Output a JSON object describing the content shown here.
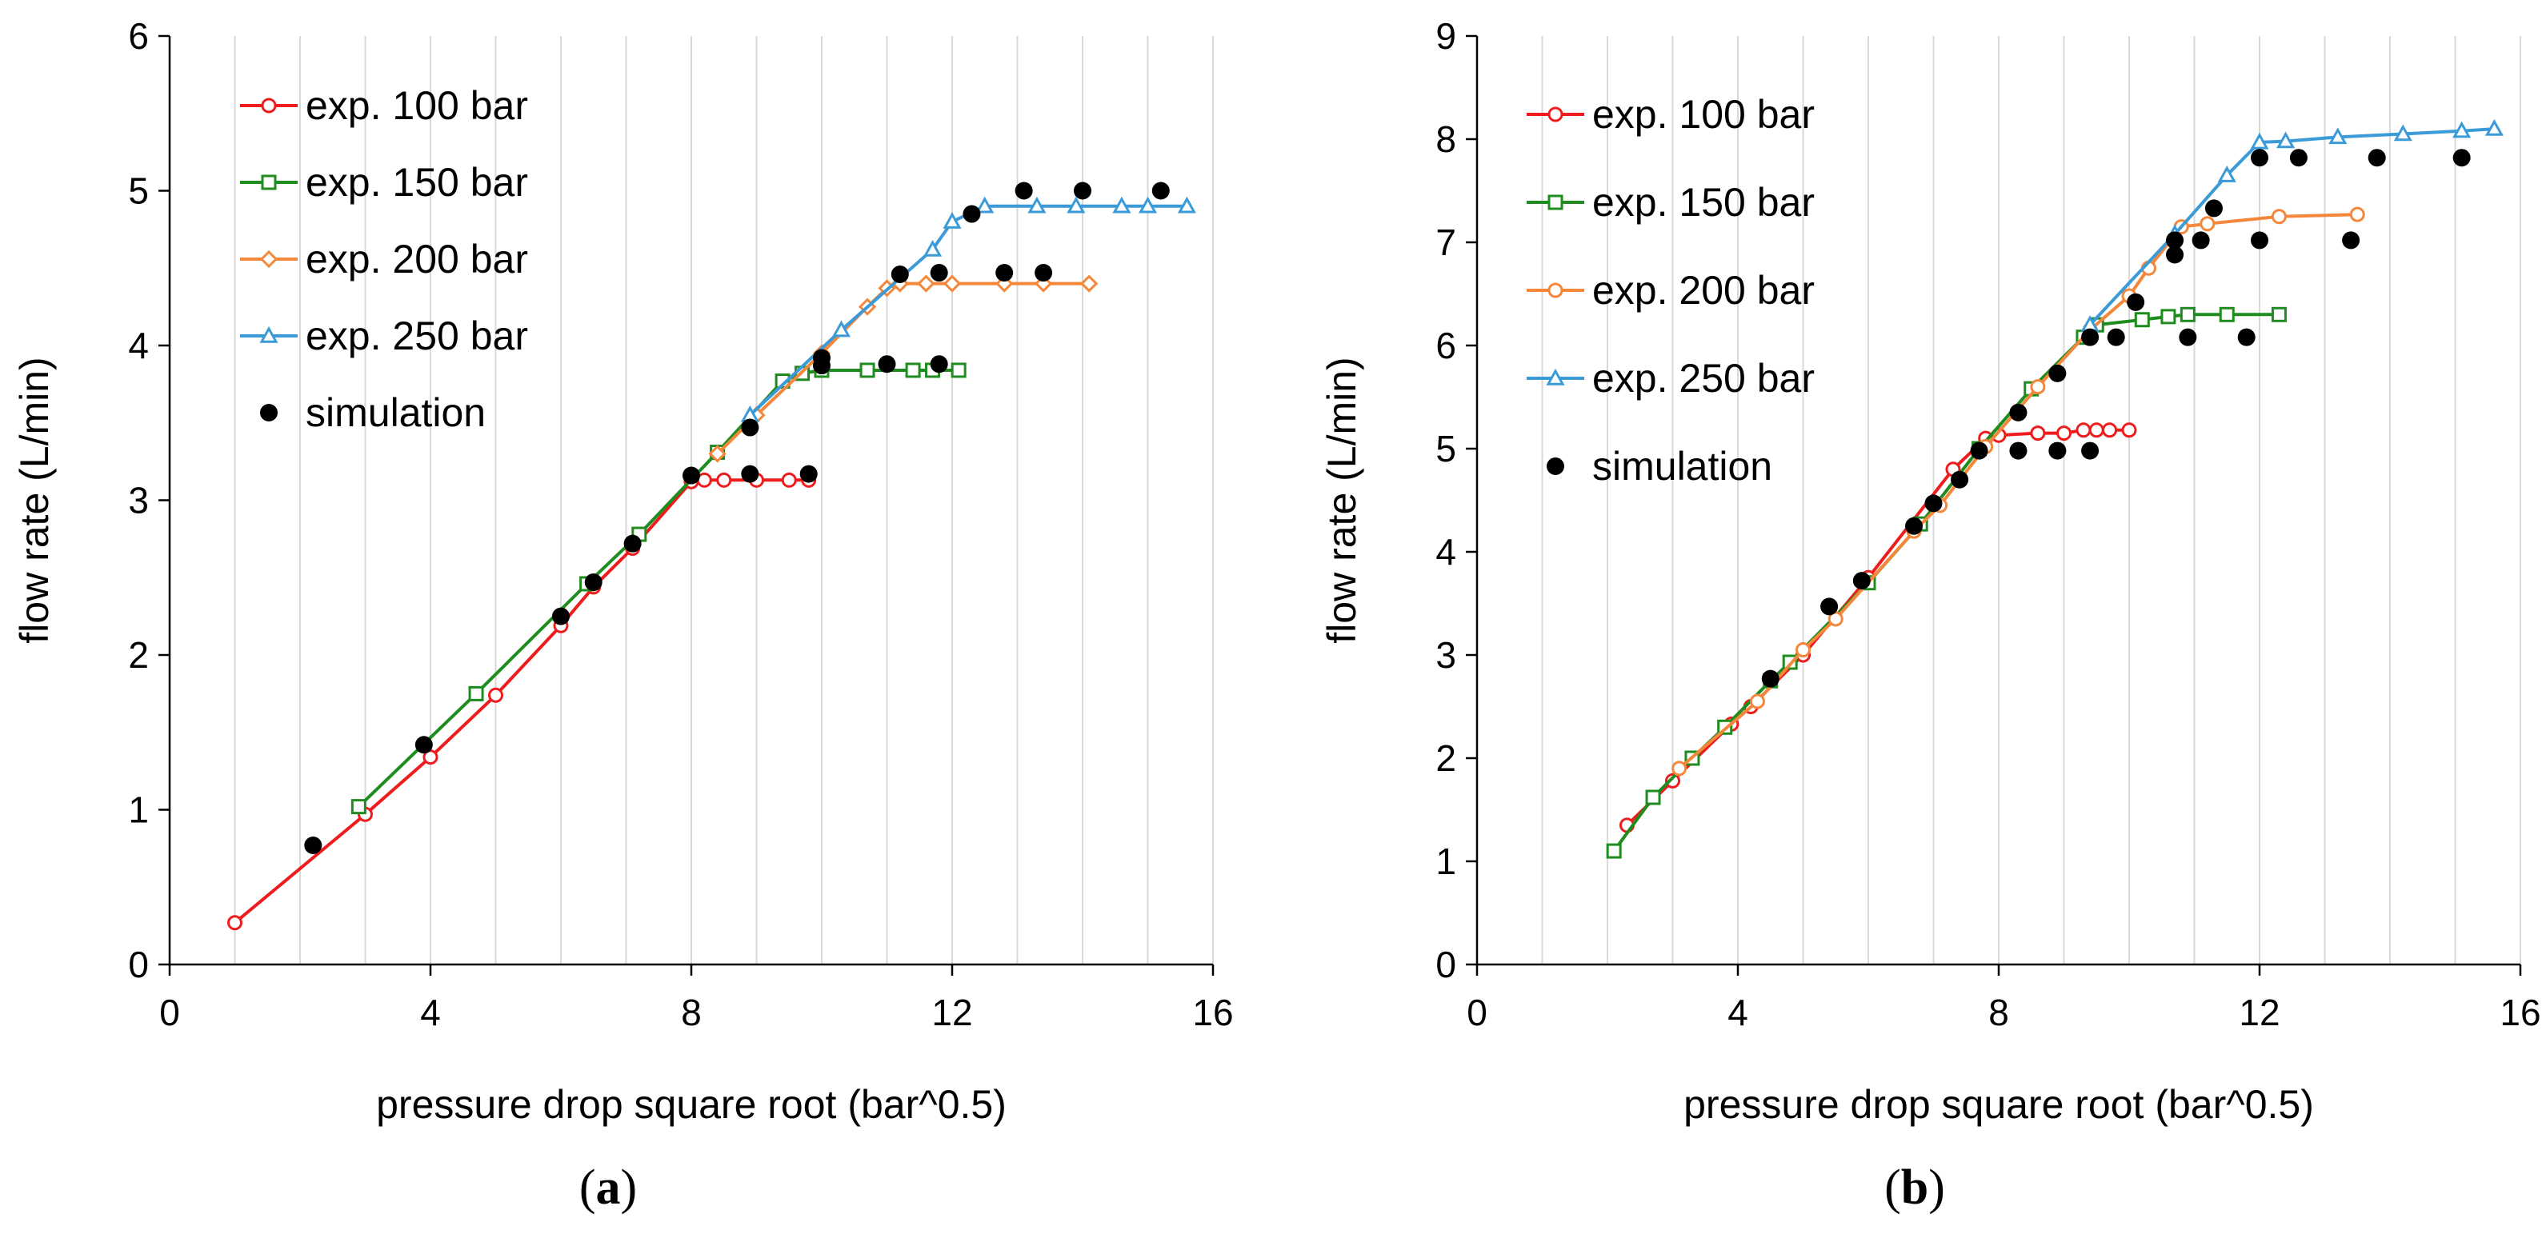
{
  "colors": {
    "exp100": "#ee1c1c",
    "exp150": "#1e8c1e",
    "exp200": "#f4873a",
    "exp250": "#3a9bd8",
    "simulation": "#000000",
    "grid": "#d9d9d9"
  },
  "chart_data": [
    {
      "type": "line",
      "panel_label": "(a)",
      "title": "",
      "xlabel": "pressure drop square root (bar^0.5)",
      "ylabel": "flow rate (L/min)",
      "xlim": [
        0,
        16
      ],
      "ylim": [
        0,
        6
      ],
      "xticks": [
        0,
        4,
        8,
        12,
        16
      ],
      "xtick_labels": [
        "0",
        "4",
        "8",
        "12",
        "16"
      ],
      "yticks": [
        0,
        1,
        2,
        3,
        4,
        5,
        6
      ],
      "ytick_labels": [
        "0",
        "1",
        "2",
        "3",
        "4",
        "5",
        "6"
      ],
      "grid": "vertical",
      "legend_position": "top-left",
      "series": [
        {
          "name": "exp. 100 bar",
          "color_key": "exp100",
          "marker": "circle-open",
          "x": [
            1.0,
            3.0,
            4.0,
            5.0,
            6.0,
            6.5,
            7.1,
            8.0,
            8.2,
            8.5,
            9.0,
            9.5,
            9.8
          ],
          "y": [
            0.27,
            0.97,
            1.34,
            1.74,
            2.19,
            2.44,
            2.69,
            3.12,
            3.13,
            3.13,
            3.13,
            3.13,
            3.13
          ]
        },
        {
          "name": "exp. 150 bar",
          "color_key": "exp150",
          "marker": "square-open",
          "x": [
            2.9,
            4.7,
            6.4,
            7.2,
            8.4,
            9.4,
            9.7,
            10.0,
            10.7,
            11.4,
            11.7,
            12.1
          ],
          "y": [
            1.02,
            1.75,
            2.46,
            2.78,
            3.31,
            3.77,
            3.82,
            3.84,
            3.84,
            3.84,
            3.84,
            3.84
          ]
        },
        {
          "name": "exp. 200 bar",
          "color_key": "exp200",
          "marker": "diamond-open",
          "x": [
            8.4,
            9.0,
            10.0,
            10.7,
            11.0,
            11.2,
            11.6,
            12.0,
            12.8,
            13.4,
            14.1
          ],
          "y": [
            3.3,
            3.55,
            3.95,
            4.25,
            4.37,
            4.4,
            4.4,
            4.4,
            4.4,
            4.4,
            4.4
          ]
        },
        {
          "name": "exp. 250 bar",
          "color_key": "exp250",
          "marker": "triangle-open",
          "x": [
            8.9,
            10.3,
            11.7,
            12.0,
            12.5,
            13.3,
            13.9,
            14.6,
            15.0,
            15.6
          ],
          "y": [
            3.55,
            4.1,
            4.62,
            4.8,
            4.9,
            4.9,
            4.9,
            4.9,
            4.9,
            4.9
          ]
        },
        {
          "name": "simulation",
          "color_key": "simulation",
          "marker": "dot",
          "line": false,
          "x": [
            2.2,
            3.9,
            6.0,
            6.5,
            7.1,
            8.0,
            8.9,
            8.9,
            9.8,
            10.0,
            10.0,
            11.0,
            11.2,
            11.8,
            11.8,
            12.3,
            12.8,
            13.1,
            13.4,
            14.0,
            15.2
          ],
          "y": [
            0.77,
            1.42,
            2.25,
            2.47,
            2.72,
            3.16,
            3.17,
            3.47,
            3.17,
            3.87,
            3.92,
            3.88,
            4.46,
            4.47,
            3.88,
            4.85,
            4.47,
            5.0,
            4.47,
            5.0,
            5.0
          ]
        }
      ]
    },
    {
      "type": "line",
      "panel_label": "(b)",
      "title": "",
      "xlabel": "pressure drop square root (bar^0.5)",
      "ylabel": "flow rate (L/min)",
      "xlim": [
        0,
        16
      ],
      "ylim": [
        0,
        9
      ],
      "xticks": [
        0,
        4,
        8,
        12,
        16
      ],
      "xtick_labels": [
        "0",
        "4",
        "8",
        "12",
        "16"
      ],
      "yticks": [
        0,
        1,
        2,
        3,
        4,
        5,
        6,
        7,
        8,
        9
      ],
      "ytick_labels": [
        "0",
        "1",
        "2",
        "3",
        "4",
        "5",
        "6",
        "7",
        "8",
        "9"
      ],
      "grid": "vertical",
      "legend_position": "top-left",
      "series": [
        {
          "name": "exp. 100 bar",
          "color_key": "exp100",
          "marker": "circle-open",
          "x": [
            2.3,
            3.0,
            3.9,
            4.2,
            5.0,
            6.0,
            7.3,
            7.8,
            8.0,
            8.6,
            9.0,
            9.3,
            9.5,
            9.7,
            10.0
          ],
          "y": [
            1.35,
            1.78,
            2.33,
            2.5,
            3.0,
            3.75,
            4.8,
            5.1,
            5.13,
            5.15,
            5.15,
            5.18,
            5.18,
            5.18,
            5.18
          ]
        },
        {
          "name": "exp. 150 bar",
          "color_key": "exp150",
          "marker": "square-open",
          "x": [
            2.1,
            2.7,
            3.3,
            3.8,
            4.5,
            4.8,
            6.0,
            6.8,
            7.7,
            8.5,
            9.3,
            9.5,
            10.2,
            10.6,
            10.9,
            11.5,
            12.3
          ],
          "y": [
            1.1,
            1.62,
            2.0,
            2.3,
            2.75,
            2.93,
            3.7,
            4.27,
            5.0,
            5.58,
            6.08,
            6.2,
            6.25,
            6.28,
            6.3,
            6.3,
            6.3
          ]
        },
        {
          "name": "exp. 200 bar",
          "color_key": "exp200",
          "marker": "circle-open",
          "x": [
            3.1,
            4.3,
            5.0,
            5.5,
            6.7,
            7.1,
            7.8,
            8.6,
            9.4,
            10.0,
            10.3,
            10.8,
            11.2,
            12.3,
            13.5
          ],
          "y": [
            1.9,
            2.55,
            3.05,
            3.35,
            4.2,
            4.45,
            5.02,
            5.6,
            6.15,
            6.48,
            6.75,
            7.15,
            7.18,
            7.25,
            7.27
          ]
        },
        {
          "name": "exp. 250 bar",
          "color_key": "exp250",
          "marker": "triangle-open",
          "x": [
            9.4,
            10.7,
            11.5,
            12.0,
            12.4,
            13.2,
            14.2,
            15.1,
            15.6
          ],
          "y": [
            6.2,
            7.08,
            7.65,
            7.97,
            7.98,
            8.02,
            8.05,
            8.08,
            8.1
          ]
        },
        {
          "name": "simulation",
          "color_key": "simulation",
          "marker": "dot",
          "line": false,
          "x": [
            4.5,
            5.4,
            5.9,
            6.7,
            7.0,
            7.4,
            7.7,
            8.3,
            8.3,
            8.9,
            8.9,
            9.4,
            9.4,
            9.8,
            10.1,
            10.7,
            10.7,
            10.9,
            11.1,
            11.3,
            11.8,
            12.0,
            12.0,
            12.6,
            13.4,
            13.8,
            15.1
          ],
          "y": [
            2.77,
            3.47,
            3.72,
            4.25,
            4.47,
            4.7,
            4.98,
            4.98,
            5.35,
            4.98,
            5.73,
            4.98,
            6.08,
            6.08,
            6.42,
            6.88,
            7.02,
            6.08,
            7.02,
            7.33,
            6.08,
            7.02,
            7.82,
            7.82,
            7.02,
            7.82,
            7.82
          ]
        }
      ]
    }
  ]
}
